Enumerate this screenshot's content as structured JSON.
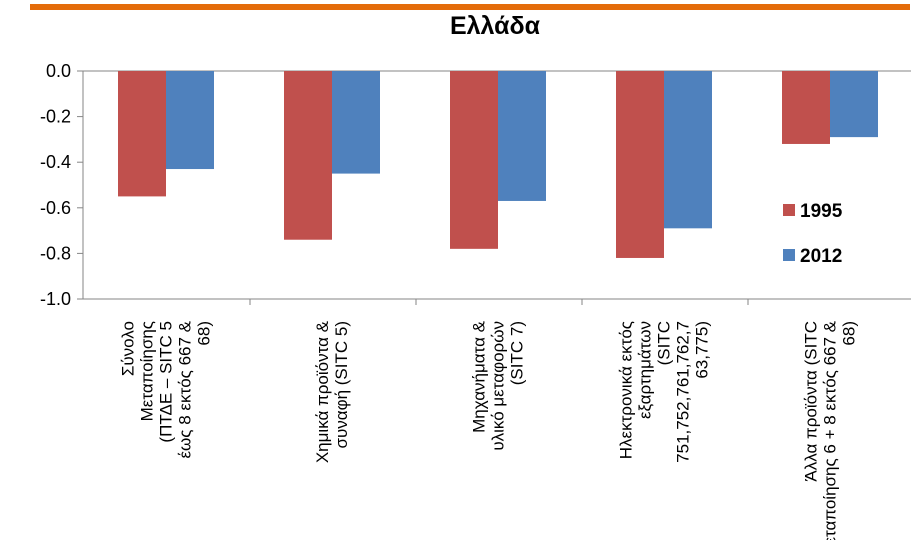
{
  "chart_data": {
    "type": "bar",
    "title": "Ελλάδα",
    "categories": [
      [
        "Σύνολο",
        "Μεταποίησης",
        "(ΠΤΔΕ – SITC 5",
        "έως 8 εκτός 667 &",
        "68)"
      ],
      [
        "Χημικά προϊόντα &",
        "συναφή (SITC 5)"
      ],
      [
        "Μηχανήματα &",
        "υλικό μεταφορών",
        "(SITC 7)"
      ],
      [
        "Ηλεκτρονικά εκτός",
        "εξαρτημάτων",
        "(SITC",
        "751,752,761,762,7",
        "63,775)"
      ],
      [
        "Άλλα προϊόντα (SITC",
        "μεταποίησης 6 + 8 εκτός 667 &",
        "68)"
      ]
    ],
    "series": [
      {
        "name": "1995",
        "color": "#C0504D",
        "values": [
          -0.55,
          -0.74,
          -0.78,
          -0.82,
          -0.32
        ]
      },
      {
        "name": "2012",
        "color": "#4F81BD",
        "values": [
          -0.43,
          -0.45,
          -0.57,
          -0.69,
          -0.29
        ]
      }
    ],
    "ylim": [
      -1.0,
      0.0
    ],
    "yticks": [
      "0.0",
      "-0.2",
      "-0.4",
      "-0.6",
      "-0.8",
      "-1.0"
    ],
    "xlabel": "",
    "ylabel": "",
    "legend": "right",
    "grid": false,
    "frame_color": "#E46C0A"
  }
}
